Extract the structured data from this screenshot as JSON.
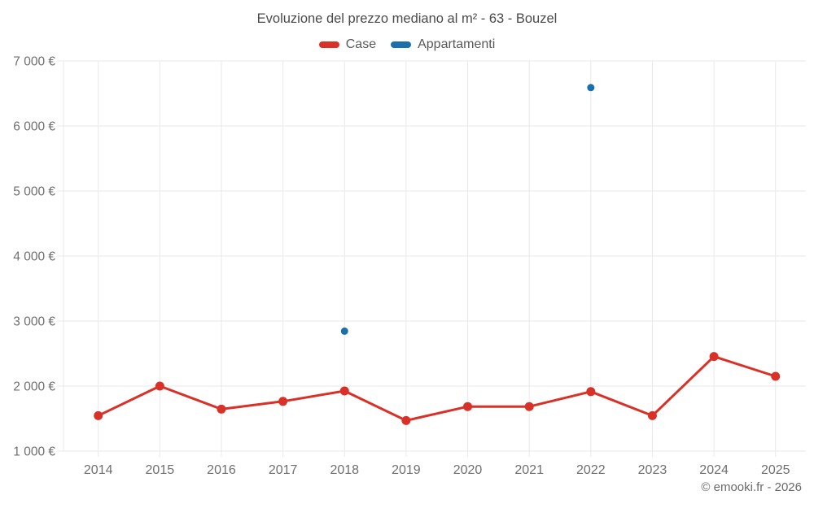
{
  "footer": {
    "copyright": "© emooki.fr - 2026"
  },
  "chart_data": {
    "type": "line",
    "title": "Evoluzione del prezzo mediano al m² - 63 - Bouzel",
    "categories": [
      "2014",
      "2015",
      "2016",
      "2017",
      "2018",
      "2019",
      "2020",
      "2021",
      "2022",
      "2023",
      "2024",
      "2025"
    ],
    "series": [
      {
        "name": "Case",
        "color": "#d93027",
        "line": true,
        "marker_radius": 5.5,
        "values": [
          1545,
          2000,
          1645,
          1765,
          1925,
          1470,
          1685,
          1685,
          1915,
          1545,
          2455,
          2150
        ]
      },
      {
        "name": "Appartamenti",
        "color": "#1a6fad",
        "line": false,
        "marker_radius": 4.5,
        "values": [
          null,
          null,
          null,
          null,
          2845,
          null,
          null,
          null,
          6590,
          null,
          null,
          null
        ]
      }
    ],
    "xlabel": "",
    "ylabel": "",
    "ylim": [
      1000,
      7000
    ],
    "y_ticks": [
      {
        "value": 1000,
        "label": "1 000 €"
      },
      {
        "value": 2000,
        "label": "2 000 €"
      },
      {
        "value": 3000,
        "label": "3 000 €"
      },
      {
        "value": 4000,
        "label": "4 000 €"
      },
      {
        "value": 5000,
        "label": "5 000 €"
      },
      {
        "value": 6000,
        "label": "6 000 €"
      },
      {
        "value": 7000,
        "label": "7 000 €"
      }
    ],
    "grid": true,
    "grid_color": "#e9e9e9",
    "axis_text_color": "#6f6f6f",
    "legend_position": "top"
  }
}
